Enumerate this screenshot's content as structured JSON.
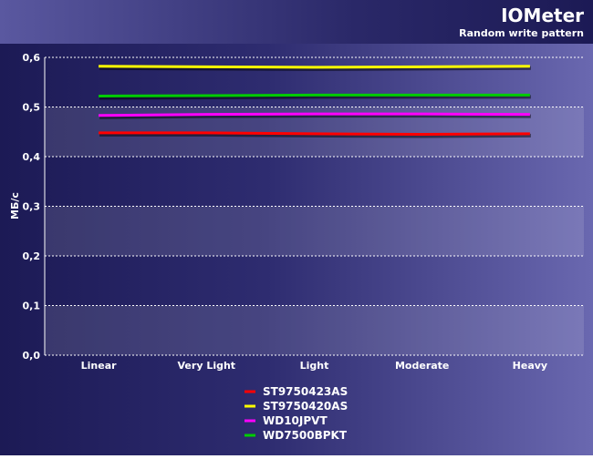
{
  "chart_data": {
    "type": "line",
    "title": "IOMeter",
    "subtitle": "Random write pattern",
    "y_label": "МБ/с",
    "categories": [
      "Linear",
      "Very Light",
      "Light",
      "Moderate",
      "Heavy"
    ],
    "series": [
      {
        "name": "ST9750423AS",
        "color": "#ff0000",
        "values": [
          0.448,
          0.448,
          0.446,
          0.445,
          0.446
        ]
      },
      {
        "name": "ST9750420AS",
        "color": "#ffff00",
        "values": [
          0.582,
          0.581,
          0.58,
          0.581,
          0.582
        ]
      },
      {
        "name": "WD10JPVT",
        "color": "#ff00ff",
        "values": [
          0.483,
          0.485,
          0.486,
          0.486,
          0.485
        ]
      },
      {
        "name": "WD7500BPKT",
        "color": "#00cc00",
        "values": [
          0.522,
          0.523,
          0.524,
          0.524,
          0.524
        ]
      }
    ],
    "ylim": [
      0,
      0.6
    ],
    "yticks": [
      {
        "value": 0,
        "label": "0,0"
      },
      {
        "value": 0.1,
        "label": "0,1"
      },
      {
        "value": 0.2,
        "label": "0,2"
      },
      {
        "value": 0.3,
        "label": "0,3"
      },
      {
        "value": 0.4,
        "label": "0,4"
      },
      {
        "value": 0.5,
        "label": "0,5"
      },
      {
        "value": 0.6,
        "label": "0,6"
      }
    ],
    "grid": true
  }
}
